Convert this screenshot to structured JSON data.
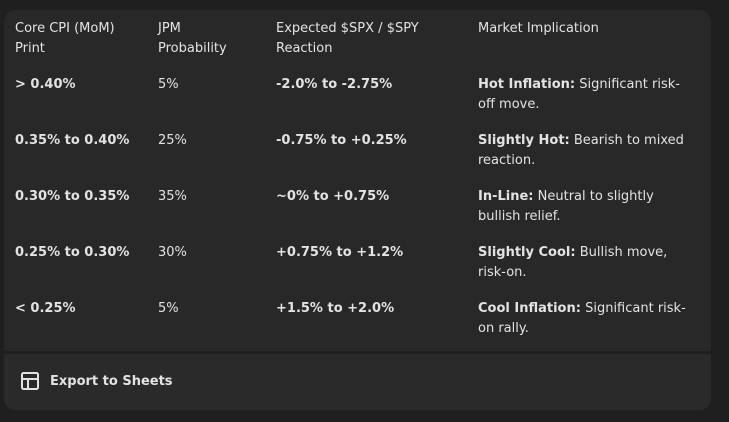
{
  "table": {
    "headers": [
      "Core CPI (MoM) Print",
      "JPM Probability",
      "Expected $SPX / $SPY Reaction",
      "Market Implication"
    ],
    "rows": [
      [
        "> 0.40%",
        "5%",
        "-2.0% to -2.75%",
        {
          "bold": "Hot Inflation:",
          "text": "Significant risk-off move."
        }
      ],
      [
        "0.35% to 0.40%",
        "25%",
        "-0.75% to +0.25%",
        {
          "bold": "Slightly Hot:",
          "text": "Bearish to mixed reaction."
        }
      ],
      [
        "0.30% to 0.35%",
        "35%",
        "~0% to +0.75%",
        {
          "bold": "In-Line:",
          "text": "Neutral to slightly bullish relief."
        }
      ],
      [
        "0.25% to 0.30%",
        "30%",
        "+0.75% to +1.2%",
        {
          "bold": "Slightly Cool:",
          "text": "Bullish move, risk-on."
        }
      ],
      [
        "< 0.25%",
        "5%",
        "+1.5% to +2.0%",
        {
          "bold": "Cool Inflation:",
          "text": "Significant risk-on rally."
        }
      ]
    ]
  },
  "footer": {
    "button": "Export to Sheets"
  }
}
